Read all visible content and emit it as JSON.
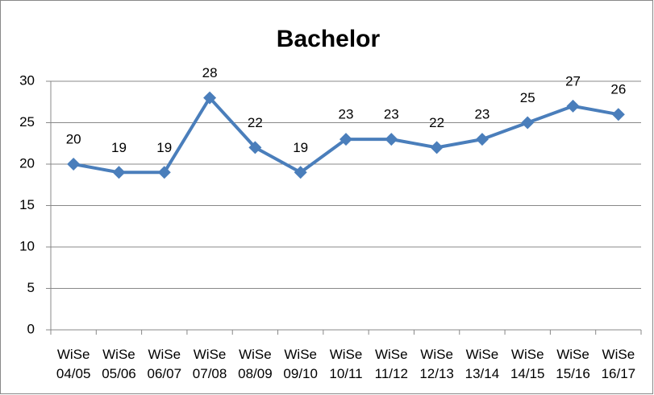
{
  "chart_data": {
    "type": "line",
    "title": "Bachelor",
    "categories": [
      "WiSe 04/05",
      "WiSe 05/06",
      "WiSe 06/07",
      "WiSe 07/08",
      "WiSe 08/09",
      "WiSe 09/10",
      "WiSe 10/11",
      "WiSe 11/12",
      "WiSe 12/13",
      "WiSe 13/14",
      "WiSe 14/15",
      "WiSe 15/16",
      "WiSe 16/17"
    ],
    "series": [
      {
        "name": "Bachelor",
        "color": "#4a7ebb",
        "values": [
          20,
          19,
          19,
          28,
          22,
          19,
          23,
          23,
          22,
          23,
          25,
          27,
          26
        ]
      }
    ],
    "ylim": [
      0,
      30
    ],
    "yticks": [
      0,
      5,
      10,
      15,
      20,
      25,
      30
    ],
    "grid": true
  }
}
